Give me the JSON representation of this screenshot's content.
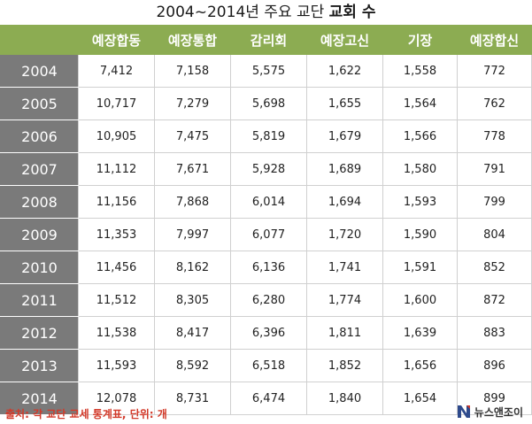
{
  "title_parts": {
    "normal": "2004~2014년 주요 교단 ",
    "bold": "교회 수"
  },
  "chart_data": {
    "type": "table",
    "title": "2004~2014년 주요 교단 교회 수",
    "columns": [
      "예장합동",
      "예장통합",
      "감리회",
      "예장고신",
      "기장",
      "예장합신"
    ],
    "rows": [
      {
        "year": "2004",
        "values": [
          "7,412",
          "7,158",
          "5,575",
          "1,622",
          "1,558",
          "772"
        ]
      },
      {
        "year": "2005",
        "values": [
          "10,717",
          "7,279",
          "5,698",
          "1,655",
          "1,564",
          "762"
        ]
      },
      {
        "year": "2006",
        "values": [
          "10,905",
          "7,475",
          "5,819",
          "1,679",
          "1,566",
          "778"
        ]
      },
      {
        "year": "2007",
        "values": [
          "11,112",
          "7,671",
          "5,928",
          "1,689",
          "1,580",
          "791"
        ]
      },
      {
        "year": "2008",
        "values": [
          "11,156",
          "7,868",
          "6,014",
          "1,694",
          "1,593",
          "799"
        ]
      },
      {
        "year": "2009",
        "values": [
          "11,353",
          "7,997",
          "6,077",
          "1,720",
          "1,590",
          "804"
        ]
      },
      {
        "year": "2010",
        "values": [
          "11,456",
          "8,162",
          "6,136",
          "1,741",
          "1,591",
          "852"
        ]
      },
      {
        "year": "2011",
        "values": [
          "11,512",
          "8,305",
          "6,280",
          "1,774",
          "1,600",
          "872"
        ]
      },
      {
        "year": "2012",
        "values": [
          "11,538",
          "8,417",
          "6,396",
          "1,811",
          "1,639",
          "883"
        ]
      },
      {
        "year": "2013",
        "values": [
          "11,593",
          "8,592",
          "6,518",
          "1,852",
          "1,656",
          "896"
        ]
      },
      {
        "year": "2014",
        "values": [
          "12,078",
          "8,731",
          "6,474",
          "1,840",
          "1,654",
          "899"
        ]
      }
    ]
  },
  "footer": {
    "source_label": "출처:",
    "source_text": "각 교단 교세 통계표,",
    "unit_label": "단위:",
    "unit_text": "개"
  },
  "logo": {
    "name": "뉴스앤조이",
    "icon": "newsnjoy-logo-icon"
  },
  "colors": {
    "header_green": "#8cac52",
    "year_gray": "#7a7a7a",
    "footer_red": "#d23a2a"
  }
}
